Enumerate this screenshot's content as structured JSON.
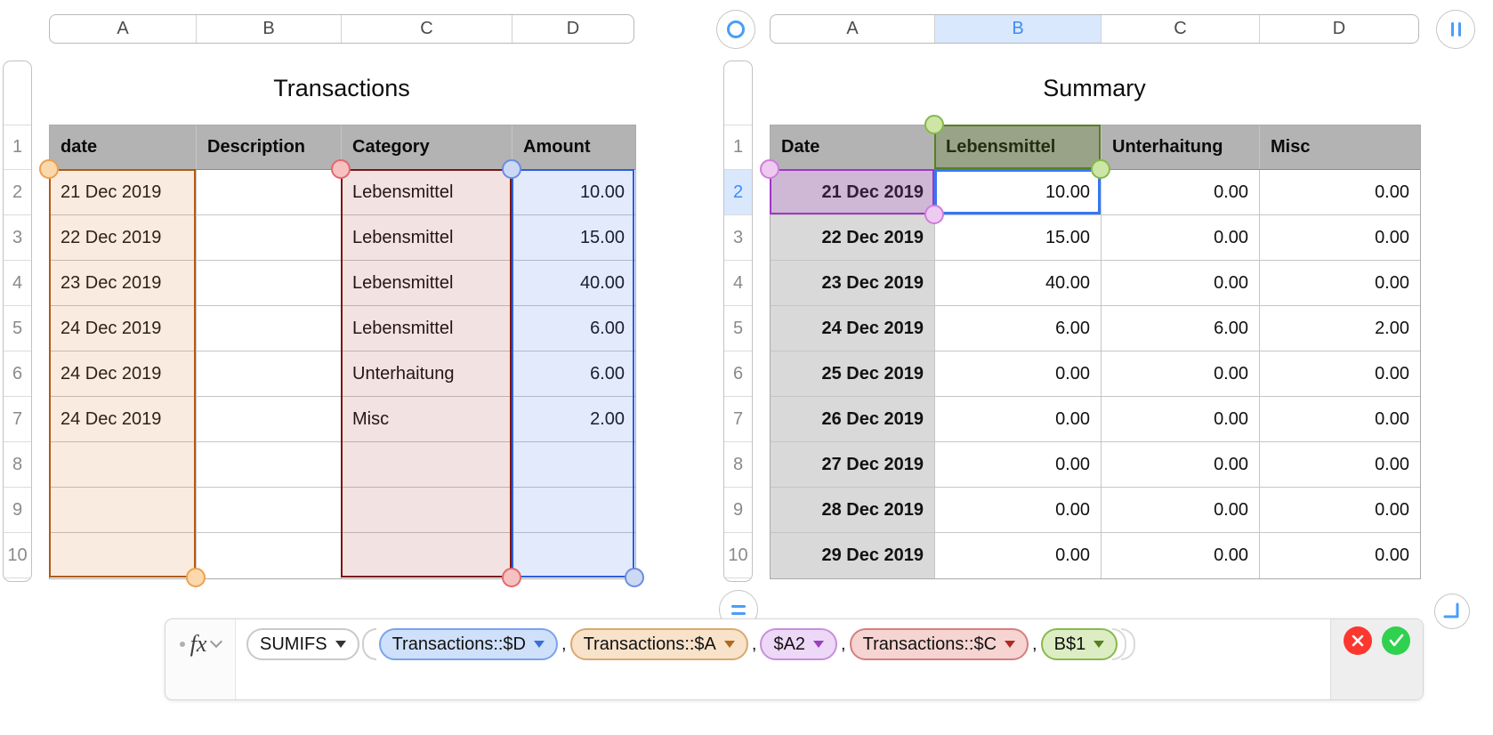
{
  "left_sheet": {
    "column_bar": {
      "labels": [
        "A",
        "B",
        "C",
        "D"
      ]
    },
    "row_numbers": [
      "1",
      "2",
      "3",
      "4",
      "5",
      "6",
      "7",
      "8",
      "9",
      "10"
    ],
    "table": {
      "title": "Transactions",
      "headers": [
        "date",
        "Description",
        "Category",
        "Amount"
      ],
      "rows": [
        [
          "21 Dec 2019",
          "",
          "Lebensmittel",
          "10.00"
        ],
        [
          "22 Dec 2019",
          "",
          "Lebensmittel",
          "15.00"
        ],
        [
          "23 Dec 2019",
          "",
          "Lebensmittel",
          "40.00"
        ],
        [
          "24 Dec 2019",
          "",
          "Lebensmittel",
          "6.00"
        ],
        [
          "24 Dec 2019",
          "",
          "Unterhaitung",
          "6.00"
        ],
        [
          "24 Dec 2019",
          "",
          "Misc",
          "2.00"
        ],
        [
          "",
          "",
          "",
          ""
        ],
        [
          "",
          "",
          "",
          ""
        ],
        [
          "",
          "",
          "",
          ""
        ]
      ]
    },
    "selections": [
      {
        "range": "column A rows 2-10",
        "color_name": "orange",
        "fill": "rgba(214,124,46,0.15)",
        "border": "#b05a14",
        "handle_fill": "#fbd9ad",
        "handle_stroke": "#eda04f"
      },
      {
        "range": "column C rows 2-10",
        "color_name": "red",
        "fill": "rgba(170,50,50,0.14)",
        "border": "#7c1616",
        "handle_fill": "#f6c1c1",
        "handle_stroke": "#e4676b"
      },
      {
        "range": "column D rows 2-10",
        "color_name": "blue",
        "fill": "rgba(70,115,225,0.15)",
        "border": "#2c5ed9",
        "handle_fill": "#ccd9f4",
        "handle_stroke": "#6a8ce0"
      }
    ]
  },
  "right_sheet": {
    "column_bar": {
      "labels": [
        "A",
        "B",
        "C",
        "D"
      ],
      "selected": "B",
      "selected_bg": "#d9e8fc",
      "selected_text": "#3f8cf4"
    },
    "row_numbers": [
      "1",
      "2",
      "3",
      "4",
      "5",
      "6",
      "7",
      "8",
      "9",
      "10"
    ],
    "selected_row": "2",
    "table": {
      "title": "Summary",
      "headers": [
        "Date",
        "Lebensmittel",
        "Unterhaitung",
        "Misc"
      ],
      "rows": [
        [
          "21 Dec 2019",
          "10.00",
          "0.00",
          "0.00"
        ],
        [
          "22 Dec 2019",
          "15.00",
          "0.00",
          "0.00"
        ],
        [
          "23 Dec 2019",
          "40.00",
          "0.00",
          "0.00"
        ],
        [
          "24 Dec 2019",
          "6.00",
          "6.00",
          "2.00"
        ],
        [
          "25 Dec 2019",
          "0.00",
          "0.00",
          "0.00"
        ],
        [
          "26 Dec 2019",
          "0.00",
          "0.00",
          "0.00"
        ],
        [
          "27 Dec 2019",
          "0.00",
          "0.00",
          "0.00"
        ],
        [
          "28 Dec 2019",
          "0.00",
          "0.00",
          "0.00"
        ],
        [
          "29 Dec 2019",
          "0.00",
          "0.00",
          "0.00"
        ]
      ]
    },
    "selections": [
      {
        "range": "header cell B1",
        "color_name": "green",
        "fill": "rgba(90,125,35,0.30)",
        "border": "#597f22",
        "handle_fill": "#cde5a5",
        "handle_stroke": "#86b84c"
      },
      {
        "range": "cell A2",
        "color_name": "purple",
        "fill": "rgba(175,70,200,0.22)",
        "border": "#a234c8",
        "handle_fill": "#eec9f0",
        "handle_stroke": "#cf7ddb"
      }
    ],
    "active_cell": {
      "ref": "B2",
      "value": "10.00",
      "border": "#3478f6"
    }
  },
  "controls": {
    "accent_blue": "#4a9df8",
    "table_handle": "ring",
    "column_handle": "double-vertical-bar",
    "row_handle": "double-horizontal-bar",
    "resize_corner": "corner-bracket"
  },
  "formula_bar": {
    "fx_label": "fx",
    "tokens": [
      {
        "type": "function",
        "label": "SUMIFS"
      },
      {
        "type": "paren-open",
        "label": "("
      },
      {
        "type": "reference",
        "label": "Transactions::$D",
        "color": "blue"
      },
      {
        "type": "comma",
        "label": ","
      },
      {
        "type": "reference",
        "label": "Transactions::$A",
        "color": "orange"
      },
      {
        "type": "comma",
        "label": ","
      },
      {
        "type": "reference",
        "label": "$A2",
        "color": "purple"
      },
      {
        "type": "comma",
        "label": ","
      },
      {
        "type": "reference",
        "label": "Transactions::$C",
        "color": "red"
      },
      {
        "type": "comma",
        "label": ","
      },
      {
        "type": "reference",
        "label": "B$1",
        "color": "green"
      },
      {
        "type": "paren-close",
        "label": ")"
      },
      {
        "type": "paren-close",
        "label": ")"
      }
    ],
    "token_colors": {
      "blue": {
        "bg": "#cfe0fb",
        "border": "#7aa3ec",
        "arrow": "#3b6fd4"
      },
      "orange": {
        "bg": "#f8e2ca",
        "border": "#d9a96e",
        "arrow": "#b06a1c"
      },
      "purple": {
        "bg": "#eed8f7",
        "border": "#c78fdd",
        "arrow": "#9a3fc0"
      },
      "red": {
        "bg": "#f6d4d2",
        "border": "#d47f7f",
        "arrow": "#b02a21"
      },
      "green": {
        "bg": "#dcedc3",
        "border": "#8ab84e",
        "arrow": "#55801f"
      }
    },
    "cancel_color": "#fc372e",
    "accept_color": "#2fd14e"
  }
}
